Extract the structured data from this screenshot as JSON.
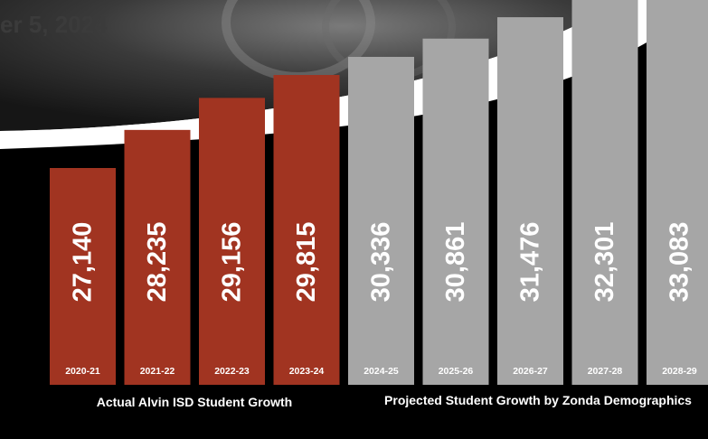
{
  "header": {
    "date_text": "er 5, 2024"
  },
  "colors": {
    "actual": "#a13421",
    "projected": "#a6a6a6",
    "background": "#000000",
    "banner": "#ffffff"
  },
  "chart_data": {
    "type": "bar",
    "categories": [
      "2020-21",
      "2021-22",
      "2022-23",
      "2023-24",
      "2024-25",
      "2025-26",
      "2026-27",
      "2027-28",
      "2028-29"
    ],
    "values": [
      27140,
      28235,
      29156,
      29815,
      30336,
      30861,
      31476,
      32301,
      33083
    ],
    "value_labels": [
      "27,140",
      "28,235",
      "29,156",
      "29,815",
      "30,336",
      "30,861",
      "31,476",
      "32,301",
      "33,083"
    ],
    "groups": [
      "actual",
      "actual",
      "actual",
      "actual",
      "projected",
      "projected",
      "projected",
      "projected",
      "projected"
    ],
    "group_labels": {
      "actual": "Actual Alvin ISD Student Growth",
      "projected": "Projected Student Growth by Zonda Demographics"
    },
    "title": "",
    "xlabel": "",
    "ylabel": "",
    "grid": false,
    "legend": "none"
  }
}
